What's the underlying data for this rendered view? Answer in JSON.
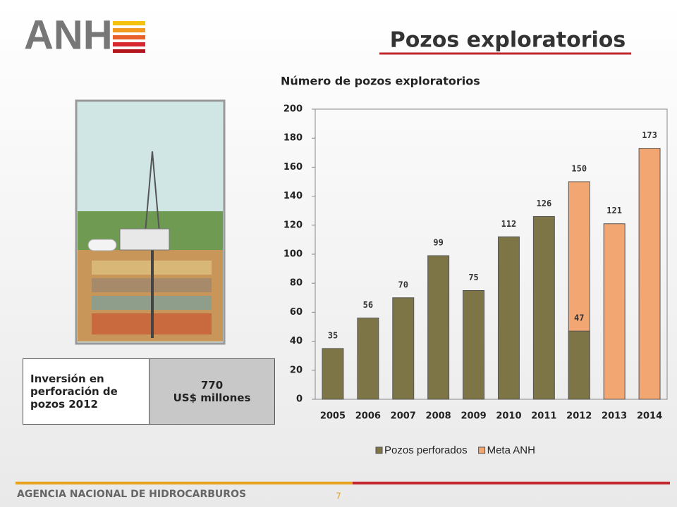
{
  "slide": {
    "title": "Pozos exploratorios",
    "logo": "ANH",
    "footer": "AGENCIA NACIONAL DE HIDROCARBUROS",
    "page_number": "7",
    "table": {
      "label": "Inversión en perforación de pozos 2012",
      "value": "770",
      "unit": "US$ millones"
    }
  },
  "chart_data": {
    "type": "bar",
    "title": "Número de pozos exploratorios",
    "categories": [
      "2005",
      "2006",
      "2007",
      "2008",
      "2009",
      "2010",
      "2011",
      "2012",
      "2013",
      "2014"
    ],
    "series": [
      {
        "name": "Pozos perforados",
        "color": "#7d7545",
        "values": [
          35,
          56,
          70,
          99,
          75,
          112,
          126,
          47,
          null,
          null
        ]
      },
      {
        "name": "Meta ANH",
        "color": "#f2a772",
        "values": [
          null,
          null,
          null,
          null,
          null,
          null,
          null,
          150,
          121,
          173
        ]
      }
    ],
    "ylim": [
      0,
      200
    ],
    "yticks": [
      0,
      20,
      40,
      60,
      80,
      100,
      120,
      140,
      160,
      180,
      200
    ],
    "grid": false,
    "legend": "bottom"
  }
}
